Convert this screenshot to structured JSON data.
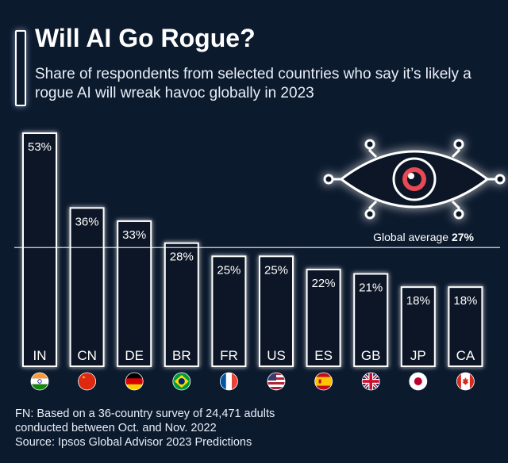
{
  "header": {
    "title": "Will AI Go Rogue?",
    "subtitle": "Share of respondents from selected countries who say it’s likely a rogue AI will wreak havoc globally in 2023"
  },
  "chart_data": {
    "type": "bar",
    "categories": [
      "IN",
      "CN",
      "DE",
      "BR",
      "FR",
      "US",
      "ES",
      "GB",
      "JP",
      "CA"
    ],
    "values": [
      53,
      36,
      33,
      28,
      25,
      25,
      22,
      21,
      18,
      18
    ],
    "value_labels": [
      "53%",
      "36%",
      "33%",
      "28%",
      "25%",
      "25%",
      "22%",
      "21%",
      "18%",
      "18%"
    ],
    "ylim": [
      0,
      53
    ],
    "reference_line": {
      "label": "Global average",
      "value_label": "27%",
      "value": 27
    },
    "flag_icons": [
      "flag-in-icon",
      "flag-cn-icon",
      "flag-de-icon",
      "flag-br-icon",
      "flag-fr-icon",
      "flag-us-icon",
      "flag-es-icon",
      "flag-gb-icon",
      "flag-jp-icon",
      "flag-ca-icon"
    ]
  },
  "colors": {
    "background": "#0c1a2e",
    "bar_fill": "#0a1628",
    "bar_stroke": "#ffffff",
    "glow": "#9fc3ff",
    "eye_red": "#e84a52"
  },
  "decoration": {
    "icon": "robot-eye-icon"
  },
  "footer": {
    "note_line1": "FN: Based on a 36-country survey of 24,471 adults",
    "note_line2": "conducted between Oct. and Nov. 2022",
    "source": "Source: Ipsos Global Advisor 2023 Predictions"
  }
}
